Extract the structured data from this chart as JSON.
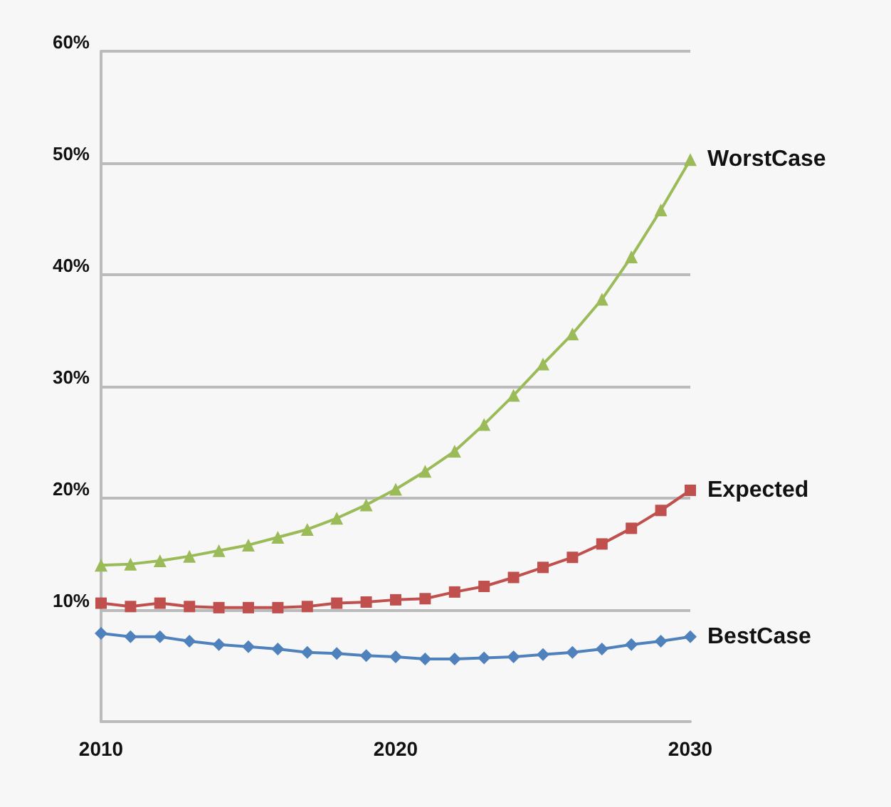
{
  "chart_data": {
    "type": "line",
    "x": [
      2010,
      2011,
      2012,
      2013,
      2014,
      2015,
      2016,
      2017,
      2018,
      2019,
      2020,
      2021,
      2022,
      2023,
      2024,
      2025,
      2026,
      2027,
      2028,
      2029,
      2030
    ],
    "series": [
      {
        "name": "WorstCase",
        "color": "#9bbb59",
        "marker": "triangle",
        "values": [
          14.0,
          14.1,
          14.4,
          14.8,
          15.3,
          15.8,
          16.5,
          17.2,
          18.2,
          19.4,
          20.8,
          22.4,
          24.2,
          26.6,
          29.2,
          32.0,
          34.7,
          37.8,
          41.6,
          45.8,
          50.3
        ]
      },
      {
        "name": "Expected",
        "color": "#c0504d",
        "marker": "square",
        "values": [
          10.6,
          10.3,
          10.6,
          10.3,
          10.2,
          10.2,
          10.2,
          10.3,
          10.6,
          10.7,
          10.9,
          11.0,
          11.6,
          12.1,
          12.9,
          13.8,
          14.7,
          15.9,
          17.3,
          18.9,
          20.7
        ]
      },
      {
        "name": "BestCase",
        "color": "#4f81bd",
        "marker": "diamond",
        "values": [
          7.9,
          7.6,
          7.6,
          7.2,
          6.9,
          6.7,
          6.5,
          6.2,
          6.1,
          5.9,
          5.8,
          5.6,
          5.6,
          5.7,
          5.8,
          6.0,
          6.2,
          6.5,
          6.9,
          7.2,
          7.6
        ]
      }
    ],
    "xlim": [
      2010,
      2030
    ],
    "xticks": [
      2010,
      2020,
      2030
    ],
    "ylim": [
      0,
      60
    ],
    "yticks": [
      {
        "value": 10,
        "label": "10%"
      },
      {
        "value": 20,
        "label": "20%"
      },
      {
        "value": 30,
        "label": "30%"
      },
      {
        "value": 40,
        "label": "40%"
      },
      {
        "value": 50,
        "label": "50%"
      },
      {
        "value": 60,
        "label": "60%"
      }
    ],
    "grid": "y",
    "line_style": "solid"
  }
}
